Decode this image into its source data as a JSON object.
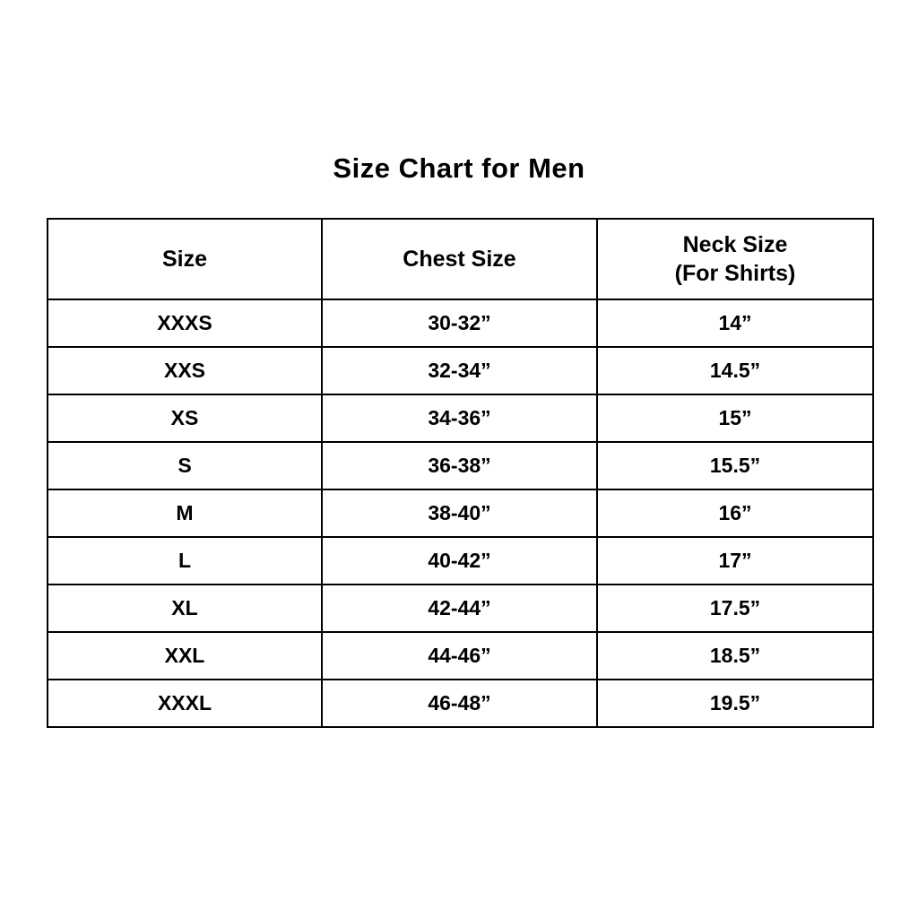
{
  "title": "Size Chart for Men",
  "chart_data": {
    "type": "table",
    "title": "Size Chart for Men",
    "columns": [
      "Size",
      "Chest Size",
      "Neck Size (For Shirts)"
    ],
    "header": {
      "size": "Size",
      "chest": "Chest Size",
      "neck_line1": "Neck Size",
      "neck_line2": "(For Shirts)"
    },
    "rows": [
      {
        "size": "XXXS",
        "chest": "30-32”",
        "neck": "14”"
      },
      {
        "size": "XXS",
        "chest": "32-34”",
        "neck": "14.5”"
      },
      {
        "size": "XS",
        "chest": "34-36”",
        "neck": "15”"
      },
      {
        "size": "S",
        "chest": "36-38”",
        "neck": "15.5”"
      },
      {
        "size": "M",
        "chest": "38-40”",
        "neck": "16”"
      },
      {
        "size": "L",
        "chest": "40-42”",
        "neck": "17”"
      },
      {
        "size": "XL",
        "chest": "42-44”",
        "neck": "17.5”"
      },
      {
        "size": "XXL",
        "chest": "44-46”",
        "neck": "18.5”"
      },
      {
        "size": "XXXL",
        "chest": "46-48”",
        "neck": "19.5”"
      }
    ]
  },
  "colors": {
    "background": "#ffffff",
    "border": "#000000",
    "text": "#000000"
  }
}
